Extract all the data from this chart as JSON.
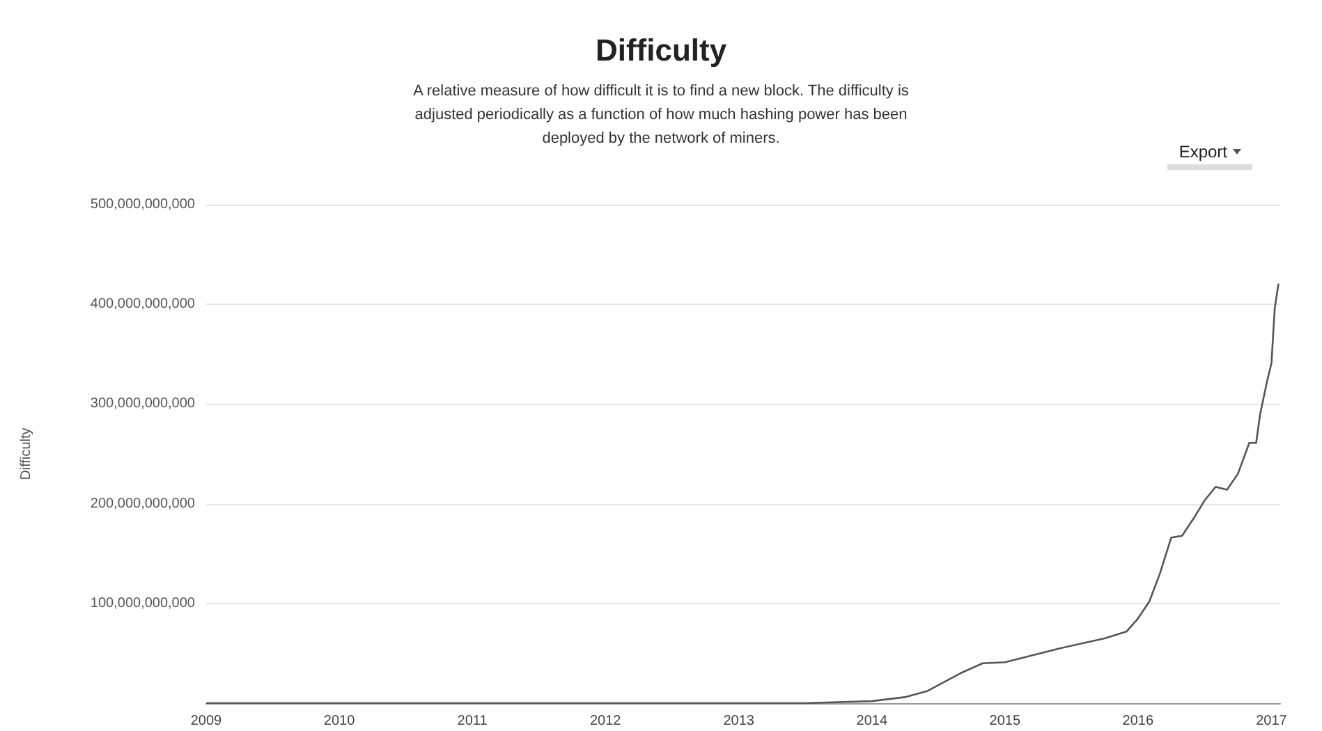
{
  "chart_data": {
    "type": "line",
    "title": "Difficulty",
    "subtitle": "A relative measure of how difficult it is to find a new block. The difficulty is\nadjusted periodically as a function of how much hashing power has been\ndeployed by the network of miners.",
    "ylabel": "Difficulty",
    "annotations": [
      "Export"
    ],
    "x": [
      "2009-01-03",
      "2010-01-01",
      "2011-01-01",
      "2012-01-01",
      "2013-01-01",
      "2013-07-01",
      "2014-01-01",
      "2014-04-01",
      "2014-06-01",
      "2014-09-01",
      "2014-11-01",
      "2015-01-01",
      "2015-06-01",
      "2015-10-01",
      "2015-12-01",
      "2016-01-01",
      "2016-02-01",
      "2016-03-01",
      "2016-04-01",
      "2016-05-01",
      "2016-06-01",
      "2016-07-01",
      "2016-08-01",
      "2016-09-01",
      "2016-10-01",
      "2016-11-01",
      "2016-11-20",
      "2016-12-01",
      "2016-12-20",
      "2017-01-01",
      "2017-01-10",
      "2017-01-20"
    ],
    "series": [
      {
        "color": "#555555",
        "values": [
          0,
          0,
          0,
          0,
          0,
          0,
          2000000000,
          6000000000,
          12000000000,
          30000000000,
          40000000000,
          41000000000,
          55000000000,
          65000000000,
          72000000000,
          85000000000,
          102000000000,
          130000000000,
          166000000000,
          168000000000,
          185000000000,
          203000000000,
          217000000000,
          214000000000,
          230000000000,
          261000000000,
          261000000000,
          290000000000,
          323000000000,
          341000000000,
          396000000000,
          420000000000
        ]
      }
    ],
    "xlim": [
      "2009-01-01",
      "2017-01-25"
    ],
    "xticks": [
      "2009",
      "2010",
      "2011",
      "2012",
      "2013",
      "2014",
      "2015",
      "2016",
      "2017"
    ],
    "ylim": [
      0,
      500000000000
    ],
    "yticks": [
      {
        "value": 100000000000,
        "label": "100,000,000,000"
      },
      {
        "value": 200000000000,
        "label": "200,000,000,000"
      },
      {
        "value": 300000000000,
        "label": "300,000,000,000"
      },
      {
        "value": 400000000000,
        "label": "400,000,000,000"
      },
      {
        "value": 500000000000,
        "label": "500,000,000,000"
      }
    ],
    "grid": "y",
    "marker": "none",
    "line_style": "solid"
  }
}
